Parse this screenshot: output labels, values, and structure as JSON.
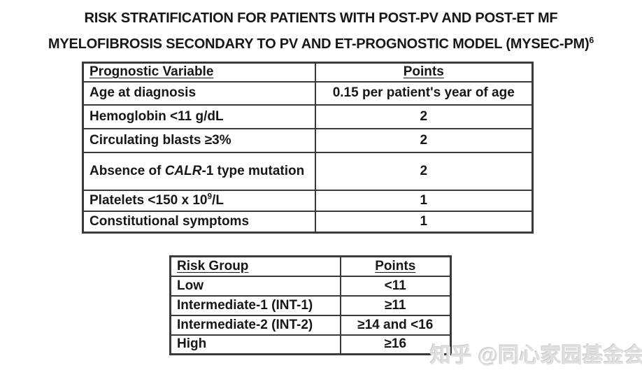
{
  "title": {
    "line1": "RISK STRATIFICATION FOR PATIENTS WITH POST-PV AND POST-ET MF",
    "line2": "MYELOFIBROSIS SECONDARY TO PV AND ET-PROGNOSTIC MODEL (MYSEC-PM)",
    "reference_superscript": "6"
  },
  "prognostic_table": {
    "headers": [
      "Prognostic Variable",
      "Points"
    ],
    "rows": [
      {
        "variable": "Age at diagnosis",
        "points": "0.15 per patient's year of age"
      },
      {
        "variable": "Hemoglobin <11 g/dL",
        "points": "2"
      },
      {
        "variable": "Circulating blasts ≥3%",
        "points": "2"
      },
      {
        "variable_parts": {
          "prefix": "Absence of ",
          "gene": "CALR",
          "suffix": "-1 type mutation"
        },
        "points": "2"
      },
      {
        "variable_parts": {
          "prefix": "Platelets <150 x 10",
          "sup": "9",
          "suffix": "/L"
        },
        "points": "1"
      },
      {
        "variable": "Constitutional symptoms",
        "points": "1"
      }
    ]
  },
  "risk_table": {
    "headers": [
      "Risk Group",
      "Points"
    ],
    "rows": [
      {
        "group": "Low",
        "points": "<11"
      },
      {
        "group": "Intermediate-1 (INT-1)",
        "points": "≥11"
      },
      {
        "group": "Intermediate-2 (INT-2)",
        "points": "≥14 and <16"
      },
      {
        "group": "High",
        "points": "≥16"
      }
    ]
  },
  "watermark": {
    "text": "知乎 @同心家园基金会"
  },
  "colors": {
    "table_border": "#3a3a3a",
    "text": "#171717",
    "watermark": "#e0e0e0",
    "background": "#ffffff"
  }
}
